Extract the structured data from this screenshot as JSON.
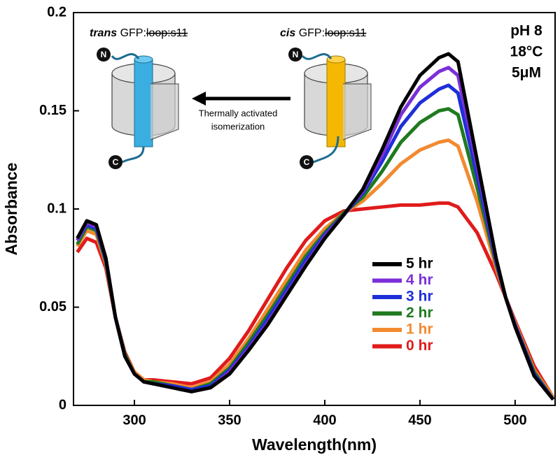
{
  "chart_data": {
    "type": "line",
    "xlabel": "Wavelength(nm)",
    "ylabel": "Absorbance",
    "xlim": [
      268,
      521
    ],
    "ylim": [
      0,
      0.2
    ],
    "xticks": [
      300,
      350,
      400,
      450,
      500
    ],
    "yticks": [
      0,
      0.05,
      0.1,
      0.15,
      0.2
    ],
    "grid": false,
    "legend": "lower right",
    "annotations": [
      "pH 8",
      "18°C",
      "5μM"
    ],
    "inset": {
      "trans_title": [
        "trans",
        "GFP:",
        "loop:s11"
      ],
      "cis_title": [
        "cis",
        "GFP:",
        "loop:s11"
      ],
      "arrow_text": [
        "Thermally activated",
        "isomerization"
      ],
      "n_label": "N",
      "c_label": "C"
    },
    "x": [
      270,
      275,
      280,
      285,
      290,
      295,
      300,
      305,
      310,
      320,
      330,
      340,
      350,
      360,
      370,
      380,
      390,
      400,
      410,
      420,
      430,
      440,
      450,
      460,
      465,
      470,
      480,
      490,
      495,
      500,
      510,
      520
    ],
    "series": [
      {
        "name": "5 hr",
        "color": "#000000",
        "values": [
          0.085,
          0.094,
          0.092,
          0.075,
          0.045,
          0.025,
          0.016,
          0.012,
          0.011,
          0.009,
          0.007,
          0.009,
          0.016,
          0.028,
          0.041,
          0.056,
          0.071,
          0.085,
          0.097,
          0.11,
          0.13,
          0.152,
          0.168,
          0.177,
          0.179,
          0.175,
          0.125,
          0.075,
          0.055,
          0.04,
          0.015,
          0.003
        ]
      },
      {
        "name": "4 hr",
        "color": "#7b2fd8",
        "values": [
          0.084,
          0.093,
          0.091,
          0.075,
          0.045,
          0.025,
          0.016,
          0.012,
          0.011,
          0.009,
          0.007,
          0.009,
          0.017,
          0.029,
          0.042,
          0.057,
          0.072,
          0.086,
          0.097,
          0.109,
          0.127,
          0.148,
          0.162,
          0.17,
          0.172,
          0.168,
          0.122,
          0.074,
          0.055,
          0.04,
          0.015,
          0.003
        ]
      },
      {
        "name": "3 hr",
        "color": "#1e2fd8",
        "values": [
          0.084,
          0.092,
          0.09,
          0.074,
          0.045,
          0.025,
          0.016,
          0.012,
          0.011,
          0.01,
          0.008,
          0.01,
          0.018,
          0.03,
          0.044,
          0.059,
          0.074,
          0.087,
          0.097,
          0.108,
          0.124,
          0.142,
          0.154,
          0.161,
          0.163,
          0.159,
          0.117,
          0.073,
          0.055,
          0.041,
          0.016,
          0.003
        ]
      },
      {
        "name": "2 hr",
        "color": "#1f7a1f",
        "values": [
          0.082,
          0.091,
          0.089,
          0.073,
          0.045,
          0.026,
          0.016,
          0.012,
          0.012,
          0.01,
          0.008,
          0.011,
          0.019,
          0.032,
          0.046,
          0.061,
          0.076,
          0.088,
          0.098,
          0.106,
          0.119,
          0.134,
          0.144,
          0.15,
          0.151,
          0.148,
          0.111,
          0.072,
          0.055,
          0.041,
          0.017,
          0.003
        ]
      },
      {
        "name": "1 hr",
        "color": "#f28a30",
        "values": [
          0.081,
          0.089,
          0.087,
          0.072,
          0.045,
          0.026,
          0.017,
          0.013,
          0.012,
          0.011,
          0.009,
          0.012,
          0.021,
          0.034,
          0.049,
          0.064,
          0.079,
          0.09,
          0.098,
          0.104,
          0.113,
          0.123,
          0.13,
          0.134,
          0.135,
          0.132,
          0.104,
          0.07,
          0.055,
          0.042,
          0.018,
          0.004
        ]
      },
      {
        "name": "0 hr",
        "color": "#e01b1b",
        "values": [
          0.078,
          0.085,
          0.083,
          0.07,
          0.045,
          0.027,
          0.017,
          0.013,
          0.013,
          0.012,
          0.011,
          0.014,
          0.024,
          0.038,
          0.054,
          0.07,
          0.084,
          0.094,
          0.099,
          0.1,
          0.101,
          0.102,
          0.102,
          0.103,
          0.103,
          0.101,
          0.088,
          0.067,
          0.055,
          0.043,
          0.02,
          0.004
        ]
      }
    ]
  }
}
